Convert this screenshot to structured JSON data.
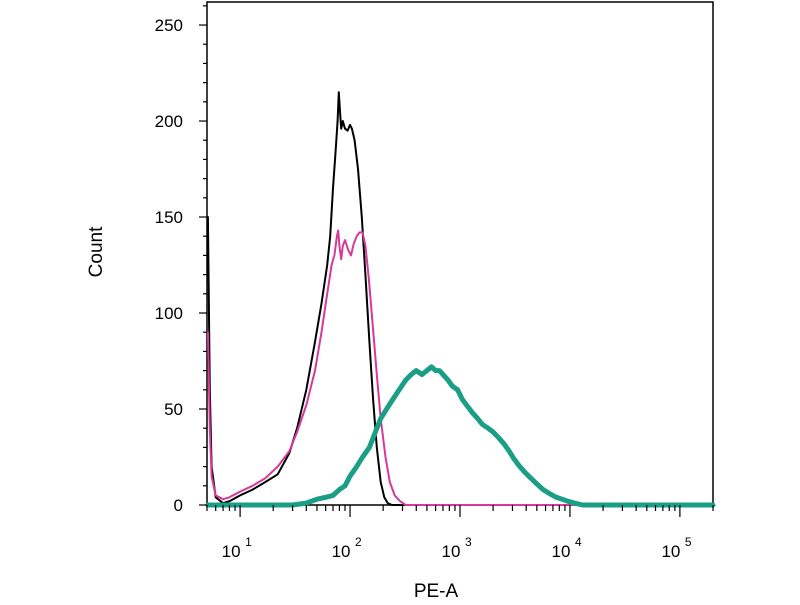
{
  "chart_data": {
    "type": "line",
    "title": "",
    "xlabel": "PE-A",
    "ylabel": "Count",
    "x_scale": "log",
    "xlim": [
      5,
      200000
    ],
    "ylim": [
      0,
      262
    ],
    "grid": false,
    "legend": "none",
    "y_ticks": [
      0,
      50,
      100,
      150,
      200,
      250
    ],
    "x_ticks": [
      {
        "value": 10,
        "base": "10",
        "exp": "1"
      },
      {
        "value": 100,
        "base": "10",
        "exp": "2"
      },
      {
        "value": 1000,
        "base": "10",
        "exp": "3"
      },
      {
        "value": 10000,
        "base": "10",
        "exp": "4"
      },
      {
        "value": 100000,
        "base": "10",
        "exp": "5"
      }
    ],
    "series": [
      {
        "color": "#000000",
        "width": 2,
        "points": [
          [
            5.1,
            150
          ],
          [
            5.3,
            60
          ],
          [
            5.5,
            20
          ],
          [
            6,
            4
          ],
          [
            7,
            1
          ],
          [
            8,
            2
          ],
          [
            10,
            5
          ],
          [
            13,
            8
          ],
          [
            17,
            12
          ],
          [
            22,
            16
          ],
          [
            28,
            27
          ],
          [
            33,
            40
          ],
          [
            40,
            60
          ],
          [
            48,
            85
          ],
          [
            55,
            105
          ],
          [
            62,
            125
          ],
          [
            66,
            140
          ],
          [
            70,
            165
          ],
          [
            74,
            185
          ],
          [
            77,
            200
          ],
          [
            79,
            215
          ],
          [
            81,
            205
          ],
          [
            83,
            196
          ],
          [
            86,
            200
          ],
          [
            90,
            196
          ],
          [
            95,
            195
          ],
          [
            100,
            198
          ],
          [
            104,
            196
          ],
          [
            110,
            190
          ],
          [
            118,
            175
          ],
          [
            128,
            150
          ],
          [
            138,
            120
          ],
          [
            150,
            85
          ],
          [
            162,
            55
          ],
          [
            175,
            30
          ],
          [
            190,
            12
          ],
          [
            205,
            4
          ],
          [
            220,
            1
          ],
          [
            240,
            0
          ],
          [
            100000,
            0
          ],
          [
            200000,
            0
          ]
        ]
      },
      {
        "color": "#d6399a",
        "width": 2,
        "points": [
          [
            5.1,
            90
          ],
          [
            5.3,
            40
          ],
          [
            5.5,
            15
          ],
          [
            6,
            5
          ],
          [
            7,
            3
          ],
          [
            8,
            4
          ],
          [
            10,
            7
          ],
          [
            13,
            10
          ],
          [
            17,
            14
          ],
          [
            22,
            20
          ],
          [
            28,
            28
          ],
          [
            33,
            38
          ],
          [
            40,
            52
          ],
          [
            48,
            70
          ],
          [
            55,
            90
          ],
          [
            62,
            110
          ],
          [
            68,
            125
          ],
          [
            72,
            130
          ],
          [
            76,
            140
          ],
          [
            78,
            143
          ],
          [
            80,
            135
          ],
          [
            83,
            128
          ],
          [
            86,
            135
          ],
          [
            90,
            138
          ],
          [
            96,
            133
          ],
          [
            102,
            130
          ],
          [
            108,
            136
          ],
          [
            115,
            140
          ],
          [
            122,
            142
          ],
          [
            130,
            142
          ],
          [
            138,
            135
          ],
          [
            148,
            118
          ],
          [
            160,
            95
          ],
          [
            175,
            68
          ],
          [
            190,
            45
          ],
          [
            210,
            25
          ],
          [
            230,
            12
          ],
          [
            255,
            5
          ],
          [
            285,
            2
          ],
          [
            320,
            0
          ],
          [
            100000,
            0
          ],
          [
            200000,
            0
          ]
        ]
      },
      {
        "color": "#1b9e86",
        "width": 5,
        "points": [
          [
            5.1,
            0
          ],
          [
            20,
            0
          ],
          [
            30,
            0
          ],
          [
            40,
            1
          ],
          [
            50,
            3
          ],
          [
            60,
            4
          ],
          [
            70,
            5
          ],
          [
            80,
            8
          ],
          [
            90,
            10
          ],
          [
            100,
            15
          ],
          [
            115,
            20
          ],
          [
            130,
            25
          ],
          [
            150,
            30
          ],
          [
            170,
            38
          ],
          [
            190,
            45
          ],
          [
            215,
            50
          ],
          [
            245,
            55
          ],
          [
            280,
            60
          ],
          [
            320,
            65
          ],
          [
            360,
            68
          ],
          [
            400,
            70
          ],
          [
            450,
            68
          ],
          [
            500,
            70
          ],
          [
            550,
            72
          ],
          [
            600,
            70
          ],
          [
            650,
            70
          ],
          [
            700,
            68
          ],
          [
            780,
            65
          ],
          [
            850,
            62
          ],
          [
            950,
            60
          ],
          [
            1050,
            55
          ],
          [
            1150,
            52
          ],
          [
            1300,
            48
          ],
          [
            1450,
            45
          ],
          [
            1600,
            42
          ],
          [
            1800,
            40
          ],
          [
            2000,
            38
          ],
          [
            2250,
            35
          ],
          [
            2500,
            32
          ],
          [
            2800,
            28
          ],
          [
            3100,
            24
          ],
          [
            3500,
            20
          ],
          [
            3900,
            17
          ],
          [
            4400,
            14
          ],
          [
            5000,
            11
          ],
          [
            5700,
            8
          ],
          [
            6500,
            6
          ],
          [
            7500,
            4
          ],
          [
            8500,
            3
          ],
          [
            9500,
            2
          ],
          [
            11000,
            1
          ],
          [
            13000,
            0
          ],
          [
            20000,
            0
          ],
          [
            60000,
            0
          ],
          [
            200000,
            0
          ]
        ]
      }
    ]
  }
}
